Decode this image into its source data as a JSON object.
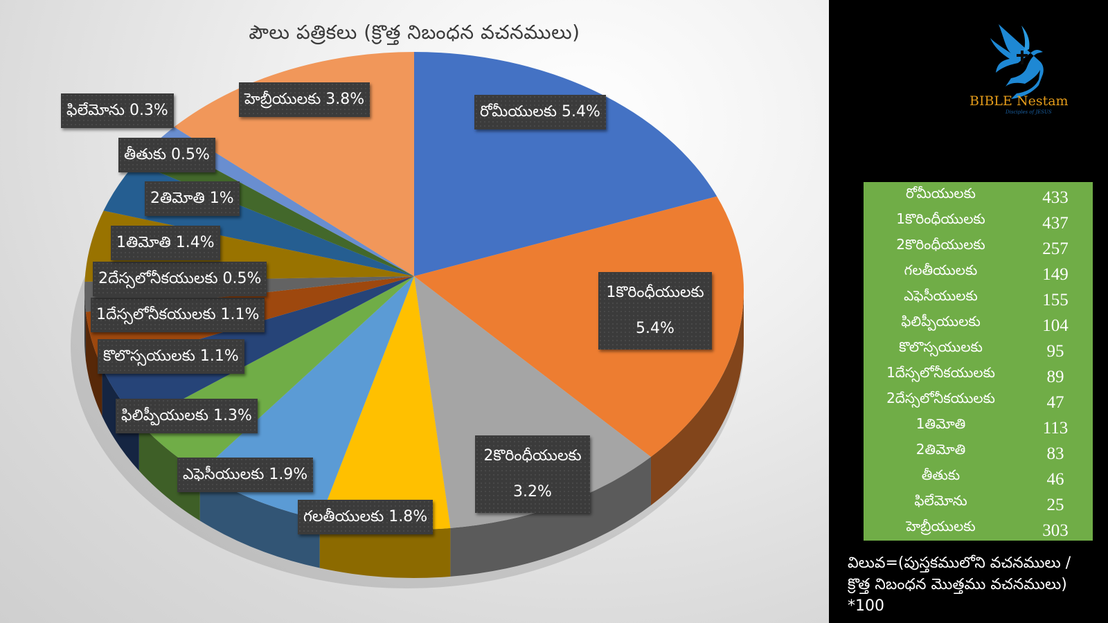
{
  "chart_data": {
    "type": "pie",
    "title": "పౌలు పత్రికలు (క్రొత్త నిబంధన వచనములు)",
    "categories": [
      "రోమీయులకు",
      "1కొరింధీయులకు",
      "2కొరింధీయులకు",
      "గలతీయులకు",
      "ఎఫెసీయులకు",
      "ఫిలిప్పీయులకు",
      "కొలొస్సయులకు",
      "1దేస్సలోనీకయులకు",
      "2దేస్సలోనీకయులకు",
      "1తిమోతి",
      "2తిమోతి",
      "తీతుకు",
      "ఫిలేమోను",
      "హెబ్రీయులకు"
    ],
    "values": [
      5.4,
      5.4,
      3.2,
      1.8,
      1.9,
      1.3,
      1.1,
      1.1,
      0.5,
      1.4,
      1.0,
      0.5,
      0.3,
      3.8
    ],
    "value_labels": [
      "5.4%",
      "5.4%",
      "3.2%",
      "1.8%",
      "1.9%",
      "1.3%",
      "1.1%",
      "1.1%",
      "0.5%",
      "1.4%",
      "1%",
      "0.5%",
      "0.3%",
      "3.8%"
    ],
    "verse_counts": [
      433,
      437,
      257,
      149,
      155,
      104,
      95,
      89,
      47,
      113,
      83,
      46,
      25,
      303
    ],
    "colors": [
      "#4472c4",
      "#ed7d31",
      "#a5a5a5",
      "#ffc000",
      "#5b9bd5",
      "#70ad47",
      "#264478",
      "#9e480e",
      "#636363",
      "#997300",
      "#255e91",
      "#43682b",
      "#698ed0",
      "#f1975a"
    ],
    "start_angle": "12 o'clock, clockwise",
    "legend": "none (data labels on slices)",
    "style": "3D pie"
  },
  "chart": {
    "title": "పౌలు పత్రికలు (క్రొత్త నిబంధన వచనములు)",
    "labels": [
      {
        "name": "రోమీయులకు",
        "pct": "5.4%",
        "text": "రోమీయులకు 5.4%"
      },
      {
        "name": "1కొరింధీయులకు",
        "pct": "5.4%"
      },
      {
        "name": "2కొరింధీయులకు",
        "pct": "3.2%"
      },
      {
        "name": "గలతీయులకు",
        "pct": "1.8%",
        "text": "గలతీయులకు 1.8%"
      },
      {
        "name": "ఎఫెసీయులకు",
        "pct": "1.9%",
        "text": "ఎఫెసీయులకు 1.9%"
      },
      {
        "name": "ఫిలిప్పీయులకు",
        "pct": "1.3%",
        "text": "ఫిలిప్పీయులకు 1.3%"
      },
      {
        "name": "కొలొస్సయులకు",
        "pct": "1.1%",
        "text": "కొలొస్సయులకు 1.1%"
      },
      {
        "name": "1దేస్సలోనీకయులకు",
        "pct": "1.1%",
        "text": "1దేస్సలోనీకయులకు 1.1%"
      },
      {
        "name": "2దేస్సలోనీకయులకు",
        "pct": "0.5%",
        "text": "2దేస్సలోనీకయులకు 0.5%"
      },
      {
        "name": "1తిమోతి",
        "pct": "1.4%",
        "text": "1తిమోతి 1.4%"
      },
      {
        "name": "2తిమోతి",
        "pct": "1%",
        "text": "2తిమోతి 1%"
      },
      {
        "name": "తీతుకు",
        "pct": "0.5%",
        "text": "తీతుకు 0.5%"
      },
      {
        "name": "ఫిలేమోను",
        "pct": "0.3%",
        "text": "ఫిలేమోను 0.3%"
      },
      {
        "name": "హెబ్రీయులకు",
        "pct": "3.8%",
        "text": "హెబ్రీయులకు 3.8%"
      }
    ]
  },
  "logo": {
    "title": "BIBLE Nestam",
    "tagline": "Disciples of JESUS"
  },
  "table": {
    "rows": [
      {
        "name": "రోమీయులకు",
        "count": "433"
      },
      {
        "name": "1కొరింధీయులకు",
        "count": "437"
      },
      {
        "name": "2కొరింధీయులకు",
        "count": "257"
      },
      {
        "name": "గలతీయులకు",
        "count": "149"
      },
      {
        "name": "ఎఫెసీయులకు",
        "count": "155"
      },
      {
        "name": "ఫిలిప్పీయులకు",
        "count": "104"
      },
      {
        "name": "కొలొస్సయులకు",
        "count": "95"
      },
      {
        "name": "1దేస్సలోనీకయులకు",
        "count": "89"
      },
      {
        "name": "2దేస్సలోనీకయులకు",
        "count": "47"
      },
      {
        "name": "1తిమోతి",
        "count": "113"
      },
      {
        "name": "2తిమోతి",
        "count": "83"
      },
      {
        "name": "తీతుకు",
        "count": "46"
      },
      {
        "name": "ఫిలేమోను",
        "count": "25"
      },
      {
        "name": "హెబ్రీయులకు",
        "count": "303"
      }
    ]
  },
  "formula": {
    "line1": "విలువ=(పుస్తకములోని వచనములు /",
    "line2": "క్రొత్త నిబంధన మొత్తము వచనములు)",
    "line3": "*100"
  }
}
